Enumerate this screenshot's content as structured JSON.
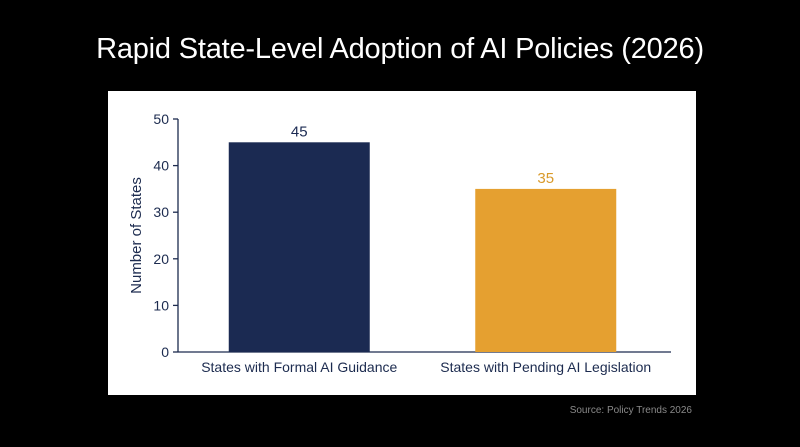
{
  "title": "Rapid State-Level Adoption of AI Policies (2026)",
  "source": "Source: Policy Trends 2026",
  "colors": {
    "background": "#000000",
    "panel": "#ffffff",
    "axis": "#1c2b4f",
    "bar_primary": "#1b2a52",
    "bar_secondary": "#e5a030",
    "label_secondary": "#d99a2b"
  },
  "chart_data": {
    "type": "bar",
    "title": "Rapid State-Level Adoption of AI Policies (2026)",
    "xlabel": "",
    "ylabel": "Number of States",
    "ylim": [
      0,
      50
    ],
    "yticks": [
      0,
      10,
      20,
      30,
      40,
      50
    ],
    "categories": [
      "States with Formal AI Guidance",
      "States with Pending AI Legislation"
    ],
    "values": [
      45,
      35
    ],
    "data_labels": [
      "45",
      "35"
    ],
    "bar_colors": [
      "#1b2a52",
      "#e5a030"
    ],
    "label_colors": [
      "#1b2a52",
      "#d99a2b"
    ],
    "grid": false,
    "legend": "none"
  }
}
